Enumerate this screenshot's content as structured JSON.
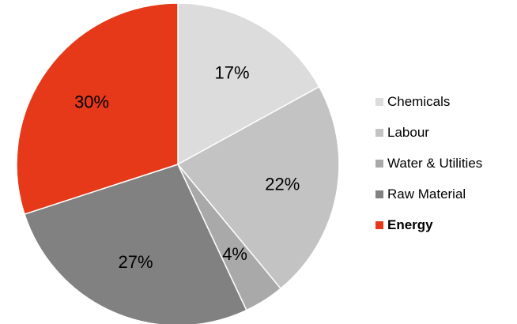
{
  "chart_data": {
    "type": "pie",
    "title": "",
    "legend_position": "right",
    "start_angle_deg": 0,
    "direction": "clockwise",
    "slices": [
      {
        "name": "Chemicals",
        "value": 17,
        "label": "17%",
        "color": "#dcdcdc",
        "bold": false
      },
      {
        "name": "Labour",
        "value": 22,
        "label": "22%",
        "color": "#c3c3c3",
        "bold": false
      },
      {
        "name": "Water & Utilities",
        "value": 4,
        "label": "4%",
        "color": "#a9a9a9",
        "bold": false
      },
      {
        "name": "Raw Material",
        "value": 27,
        "label": "27%",
        "color": "#818181",
        "bold": false
      },
      {
        "name": "Energy",
        "value": 30,
        "label": "30%",
        "color": "#e5391a",
        "bold": true
      }
    ]
  }
}
